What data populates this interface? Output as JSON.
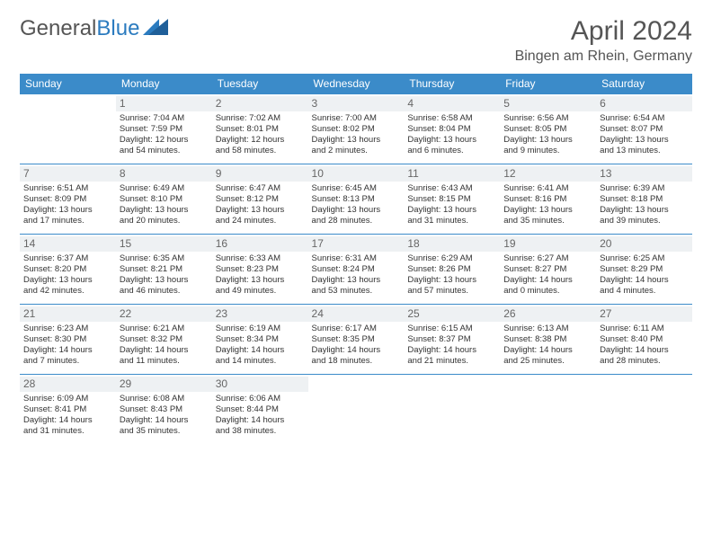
{
  "brand": {
    "part1": "General",
    "part2": "Blue"
  },
  "title": "April 2024",
  "location": "Bingen am Rhein, Germany",
  "colors": {
    "header_bg": "#3b8bc9",
    "header_text": "#ffffff",
    "daynum_bg": "#eef1f3",
    "border": "#3b8bc9",
    "body_text": "#333333",
    "title_text": "#555555"
  },
  "weekdays": [
    "Sunday",
    "Monday",
    "Tuesday",
    "Wednesday",
    "Thursday",
    "Friday",
    "Saturday"
  ],
  "weeks": [
    [
      null,
      {
        "n": "1",
        "sr": "Sunrise: 7:04 AM",
        "ss": "Sunset: 7:59 PM",
        "dl1": "Daylight: 12 hours",
        "dl2": "and 54 minutes."
      },
      {
        "n": "2",
        "sr": "Sunrise: 7:02 AM",
        "ss": "Sunset: 8:01 PM",
        "dl1": "Daylight: 12 hours",
        "dl2": "and 58 minutes."
      },
      {
        "n": "3",
        "sr": "Sunrise: 7:00 AM",
        "ss": "Sunset: 8:02 PM",
        "dl1": "Daylight: 13 hours",
        "dl2": "and 2 minutes."
      },
      {
        "n": "4",
        "sr": "Sunrise: 6:58 AM",
        "ss": "Sunset: 8:04 PM",
        "dl1": "Daylight: 13 hours",
        "dl2": "and 6 minutes."
      },
      {
        "n": "5",
        "sr": "Sunrise: 6:56 AM",
        "ss": "Sunset: 8:05 PM",
        "dl1": "Daylight: 13 hours",
        "dl2": "and 9 minutes."
      },
      {
        "n": "6",
        "sr": "Sunrise: 6:54 AM",
        "ss": "Sunset: 8:07 PM",
        "dl1": "Daylight: 13 hours",
        "dl2": "and 13 minutes."
      }
    ],
    [
      {
        "n": "7",
        "sr": "Sunrise: 6:51 AM",
        "ss": "Sunset: 8:09 PM",
        "dl1": "Daylight: 13 hours",
        "dl2": "and 17 minutes."
      },
      {
        "n": "8",
        "sr": "Sunrise: 6:49 AM",
        "ss": "Sunset: 8:10 PM",
        "dl1": "Daylight: 13 hours",
        "dl2": "and 20 minutes."
      },
      {
        "n": "9",
        "sr": "Sunrise: 6:47 AM",
        "ss": "Sunset: 8:12 PM",
        "dl1": "Daylight: 13 hours",
        "dl2": "and 24 minutes."
      },
      {
        "n": "10",
        "sr": "Sunrise: 6:45 AM",
        "ss": "Sunset: 8:13 PM",
        "dl1": "Daylight: 13 hours",
        "dl2": "and 28 minutes."
      },
      {
        "n": "11",
        "sr": "Sunrise: 6:43 AM",
        "ss": "Sunset: 8:15 PM",
        "dl1": "Daylight: 13 hours",
        "dl2": "and 31 minutes."
      },
      {
        "n": "12",
        "sr": "Sunrise: 6:41 AM",
        "ss": "Sunset: 8:16 PM",
        "dl1": "Daylight: 13 hours",
        "dl2": "and 35 minutes."
      },
      {
        "n": "13",
        "sr": "Sunrise: 6:39 AM",
        "ss": "Sunset: 8:18 PM",
        "dl1": "Daylight: 13 hours",
        "dl2": "and 39 minutes."
      }
    ],
    [
      {
        "n": "14",
        "sr": "Sunrise: 6:37 AM",
        "ss": "Sunset: 8:20 PM",
        "dl1": "Daylight: 13 hours",
        "dl2": "and 42 minutes."
      },
      {
        "n": "15",
        "sr": "Sunrise: 6:35 AM",
        "ss": "Sunset: 8:21 PM",
        "dl1": "Daylight: 13 hours",
        "dl2": "and 46 minutes."
      },
      {
        "n": "16",
        "sr": "Sunrise: 6:33 AM",
        "ss": "Sunset: 8:23 PM",
        "dl1": "Daylight: 13 hours",
        "dl2": "and 49 minutes."
      },
      {
        "n": "17",
        "sr": "Sunrise: 6:31 AM",
        "ss": "Sunset: 8:24 PM",
        "dl1": "Daylight: 13 hours",
        "dl2": "and 53 minutes."
      },
      {
        "n": "18",
        "sr": "Sunrise: 6:29 AM",
        "ss": "Sunset: 8:26 PM",
        "dl1": "Daylight: 13 hours",
        "dl2": "and 57 minutes."
      },
      {
        "n": "19",
        "sr": "Sunrise: 6:27 AM",
        "ss": "Sunset: 8:27 PM",
        "dl1": "Daylight: 14 hours",
        "dl2": "and 0 minutes."
      },
      {
        "n": "20",
        "sr": "Sunrise: 6:25 AM",
        "ss": "Sunset: 8:29 PM",
        "dl1": "Daylight: 14 hours",
        "dl2": "and 4 minutes."
      }
    ],
    [
      {
        "n": "21",
        "sr": "Sunrise: 6:23 AM",
        "ss": "Sunset: 8:30 PM",
        "dl1": "Daylight: 14 hours",
        "dl2": "and 7 minutes."
      },
      {
        "n": "22",
        "sr": "Sunrise: 6:21 AM",
        "ss": "Sunset: 8:32 PM",
        "dl1": "Daylight: 14 hours",
        "dl2": "and 11 minutes."
      },
      {
        "n": "23",
        "sr": "Sunrise: 6:19 AM",
        "ss": "Sunset: 8:34 PM",
        "dl1": "Daylight: 14 hours",
        "dl2": "and 14 minutes."
      },
      {
        "n": "24",
        "sr": "Sunrise: 6:17 AM",
        "ss": "Sunset: 8:35 PM",
        "dl1": "Daylight: 14 hours",
        "dl2": "and 18 minutes."
      },
      {
        "n": "25",
        "sr": "Sunrise: 6:15 AM",
        "ss": "Sunset: 8:37 PM",
        "dl1": "Daylight: 14 hours",
        "dl2": "and 21 minutes."
      },
      {
        "n": "26",
        "sr": "Sunrise: 6:13 AM",
        "ss": "Sunset: 8:38 PM",
        "dl1": "Daylight: 14 hours",
        "dl2": "and 25 minutes."
      },
      {
        "n": "27",
        "sr": "Sunrise: 6:11 AM",
        "ss": "Sunset: 8:40 PM",
        "dl1": "Daylight: 14 hours",
        "dl2": "and 28 minutes."
      }
    ],
    [
      {
        "n": "28",
        "sr": "Sunrise: 6:09 AM",
        "ss": "Sunset: 8:41 PM",
        "dl1": "Daylight: 14 hours",
        "dl2": "and 31 minutes."
      },
      {
        "n": "29",
        "sr": "Sunrise: 6:08 AM",
        "ss": "Sunset: 8:43 PM",
        "dl1": "Daylight: 14 hours",
        "dl2": "and 35 minutes."
      },
      {
        "n": "30",
        "sr": "Sunrise: 6:06 AM",
        "ss": "Sunset: 8:44 PM",
        "dl1": "Daylight: 14 hours",
        "dl2": "and 38 minutes."
      },
      null,
      null,
      null,
      null
    ]
  ]
}
